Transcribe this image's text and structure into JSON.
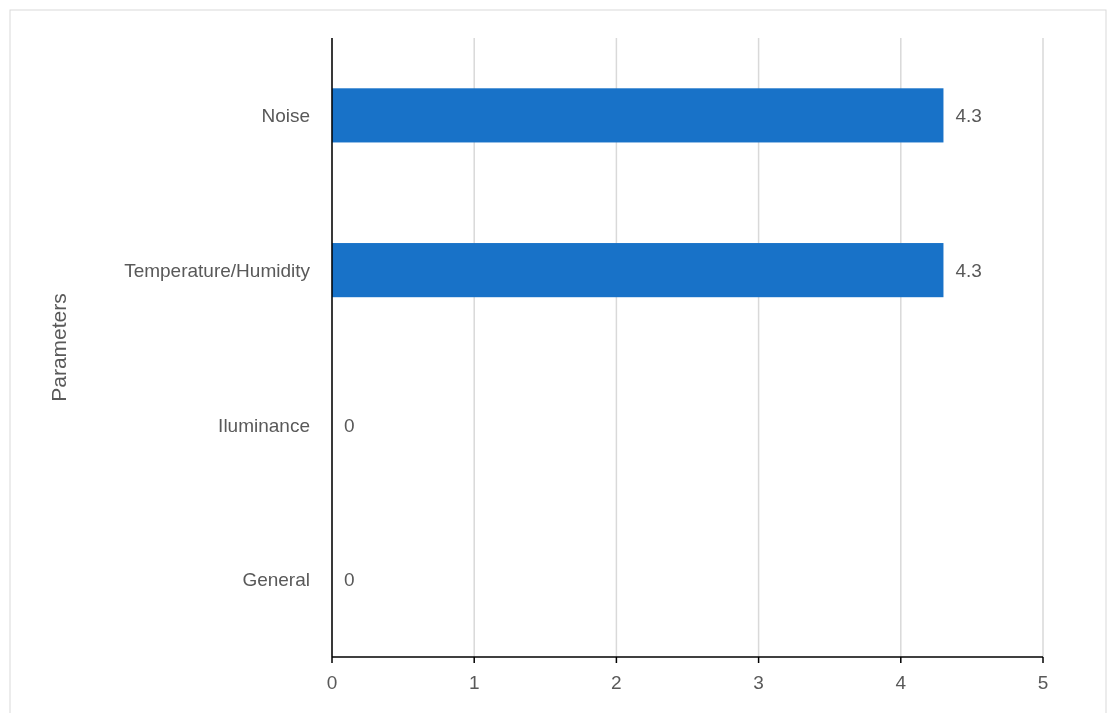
{
  "chart_data": {
    "type": "bar",
    "orientation": "horizontal",
    "ylabel": "Parameters",
    "categories": [
      "Noise",
      "Temperature/Humidity",
      "Iluminance",
      "General"
    ],
    "values": [
      4.3,
      4.3,
      0,
      0
    ],
    "color": "#1872c8",
    "xlim": [
      0,
      5
    ],
    "xticks": [
      0,
      1,
      2,
      3,
      4,
      5
    ],
    "grid": "x",
    "data_labels": true
  }
}
